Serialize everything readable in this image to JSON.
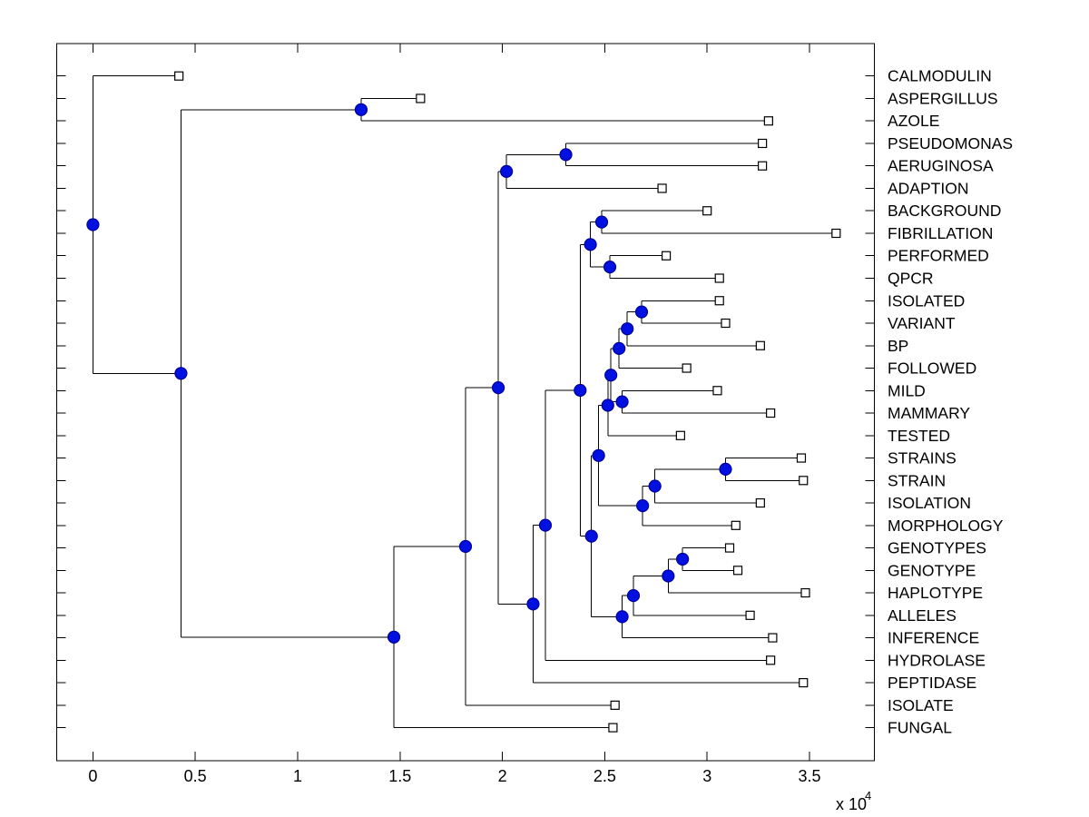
{
  "figure": {
    "background": "#ffffff",
    "box_color": "#000000"
  },
  "colors": {
    "branch_line": "#000000",
    "internal_node_fill": "#0010e0",
    "internal_node_edge": "#000099",
    "leaf_marker_fill": "#ffffff",
    "leaf_marker_edge": "#000000",
    "text": "#000000"
  },
  "chart_data": {
    "type": "dendrogram",
    "orientation": "left-to-right",
    "title": "",
    "xlabel": "",
    "ylabel": "",
    "grid": false,
    "units": "branch distances in units of 10^4",
    "x_axis": {
      "tick_values": [
        0,
        0.5,
        1,
        1.5,
        2,
        2.5,
        3,
        3.5
      ],
      "tick_labels": [
        "0",
        "0.5",
        "1",
        "1.5",
        "2",
        "2.5",
        "3",
        "3.5"
      ],
      "multiplier_base": "x 10",
      "multiplier_exponent": "4",
      "range": [
        -0.174,
        3.816
      ]
    },
    "leaves": [
      {
        "name": "CALMODULIN",
        "dist": 0.42
      },
      {
        "name": "ASPERGILLUS",
        "dist": 1.6
      },
      {
        "name": "AZOLE",
        "dist": 3.3
      },
      {
        "name": "PSEUDOMONAS",
        "dist": 3.27
      },
      {
        "name": "AERUGINOSA",
        "dist": 3.27
      },
      {
        "name": "ADAPTION",
        "dist": 2.78
      },
      {
        "name": "BACKGROUND",
        "dist": 3.0
      },
      {
        "name": "FIBRILLATION",
        "dist": 3.63
      },
      {
        "name": "PERFORMED",
        "dist": 2.8
      },
      {
        "name": "QPCR",
        "dist": 3.06
      },
      {
        "name": "ISOLATED",
        "dist": 3.06
      },
      {
        "name": "VARIANT",
        "dist": 3.09
      },
      {
        "name": "BP",
        "dist": 3.26
      },
      {
        "name": "FOLLOWED",
        "dist": 2.9
      },
      {
        "name": "MILD",
        "dist": 3.05
      },
      {
        "name": "MAMMARY",
        "dist": 3.31
      },
      {
        "name": "TESTED",
        "dist": 2.87
      },
      {
        "name": "STRAINS",
        "dist": 3.46
      },
      {
        "name": "STRAIN",
        "dist": 3.47
      },
      {
        "name": "ISOLATION",
        "dist": 3.26
      },
      {
        "name": "MORPHOLOGY",
        "dist": 3.14
      },
      {
        "name": "GENOTYPES",
        "dist": 3.11
      },
      {
        "name": "GENOTYPE",
        "dist": 3.15
      },
      {
        "name": "HAPLOTYPE",
        "dist": 3.48
      },
      {
        "name": "ALLELES",
        "dist": 3.21
      },
      {
        "name": "INFERENCE",
        "dist": 3.32
      },
      {
        "name": "HYDROLASE",
        "dist": 3.31
      },
      {
        "name": "PEPTIDASE",
        "dist": 3.47
      },
      {
        "name": "ISOLATE",
        "dist": 2.55
      },
      {
        "name": "FUNGAL",
        "dist": 2.54
      }
    ],
    "nodes": [
      {
        "id": "n01",
        "dist": 0.0,
        "children": [
          "CALMODULIN",
          "n02"
        ]
      },
      {
        "id": "n02",
        "dist": 0.43,
        "children": [
          "n03",
          "n04"
        ]
      },
      {
        "id": "n03",
        "dist": 1.31,
        "children": [
          "ASPERGILLUS",
          "AZOLE"
        ]
      },
      {
        "id": "n04",
        "dist": 1.47,
        "children": [
          "n05",
          "FUNGAL"
        ]
      },
      {
        "id": "n05",
        "dist": 1.82,
        "children": [
          "n06",
          "ISOLATE"
        ]
      },
      {
        "id": "n06",
        "dist": 1.98,
        "children": [
          "n07",
          "n09"
        ]
      },
      {
        "id": "n07",
        "dist": 2.02,
        "children": [
          "n08",
          "ADAPTION"
        ]
      },
      {
        "id": "n08",
        "dist": 2.31,
        "children": [
          "PSEUDOMONAS",
          "AERUGINOSA"
        ]
      },
      {
        "id": "n09",
        "dist": 2.15,
        "children": [
          "n10",
          "PEPTIDASE"
        ]
      },
      {
        "id": "n10",
        "dist": 2.21,
        "children": [
          "n11",
          "HYDROLASE"
        ]
      },
      {
        "id": "n11",
        "dist": 2.38,
        "children": [
          "n12",
          "n15"
        ]
      },
      {
        "id": "n12",
        "dist": 2.43,
        "children": [
          "n13",
          "n14"
        ]
      },
      {
        "id": "n13",
        "dist": 2.485,
        "children": [
          "BACKGROUND",
          "FIBRILLATION"
        ]
      },
      {
        "id": "n14",
        "dist": 2.525,
        "children": [
          "PERFORMED",
          "QPCR"
        ]
      },
      {
        "id": "n15",
        "dist": 2.435,
        "children": [
          "n16",
          "n26"
        ]
      },
      {
        "id": "n16",
        "dist": 2.47,
        "children": [
          "n17",
          "n23"
        ]
      },
      {
        "id": "n17",
        "dist": 2.515,
        "children": [
          "n18",
          "TESTED"
        ]
      },
      {
        "id": "n18",
        "dist": 2.53,
        "children": [
          "n19",
          "n22"
        ]
      },
      {
        "id": "n19",
        "dist": 2.57,
        "children": [
          "n20",
          "FOLLOWED"
        ]
      },
      {
        "id": "n20",
        "dist": 2.61,
        "children": [
          "n21",
          "BP"
        ]
      },
      {
        "id": "n21",
        "dist": 2.68,
        "children": [
          "ISOLATED",
          "VARIANT"
        ]
      },
      {
        "id": "n22",
        "dist": 2.585,
        "children": [
          "MILD",
          "MAMMARY"
        ]
      },
      {
        "id": "n23",
        "dist": 2.685,
        "children": [
          "n24",
          "MORPHOLOGY"
        ]
      },
      {
        "id": "n24",
        "dist": 2.745,
        "children": [
          "n25",
          "ISOLATION"
        ]
      },
      {
        "id": "n25",
        "dist": 3.09,
        "children": [
          "STRAINS",
          "STRAIN"
        ]
      },
      {
        "id": "n26",
        "dist": 2.585,
        "children": [
          "n27",
          "INFERENCE"
        ]
      },
      {
        "id": "n27",
        "dist": 2.64,
        "children": [
          "n28",
          "ALLELES"
        ]
      },
      {
        "id": "n28",
        "dist": 2.81,
        "children": [
          "n29",
          "HAPLOTYPE"
        ]
      },
      {
        "id": "n29",
        "dist": 2.88,
        "children": [
          "GENOTYPES",
          "GENOTYPE"
        ]
      }
    ]
  }
}
